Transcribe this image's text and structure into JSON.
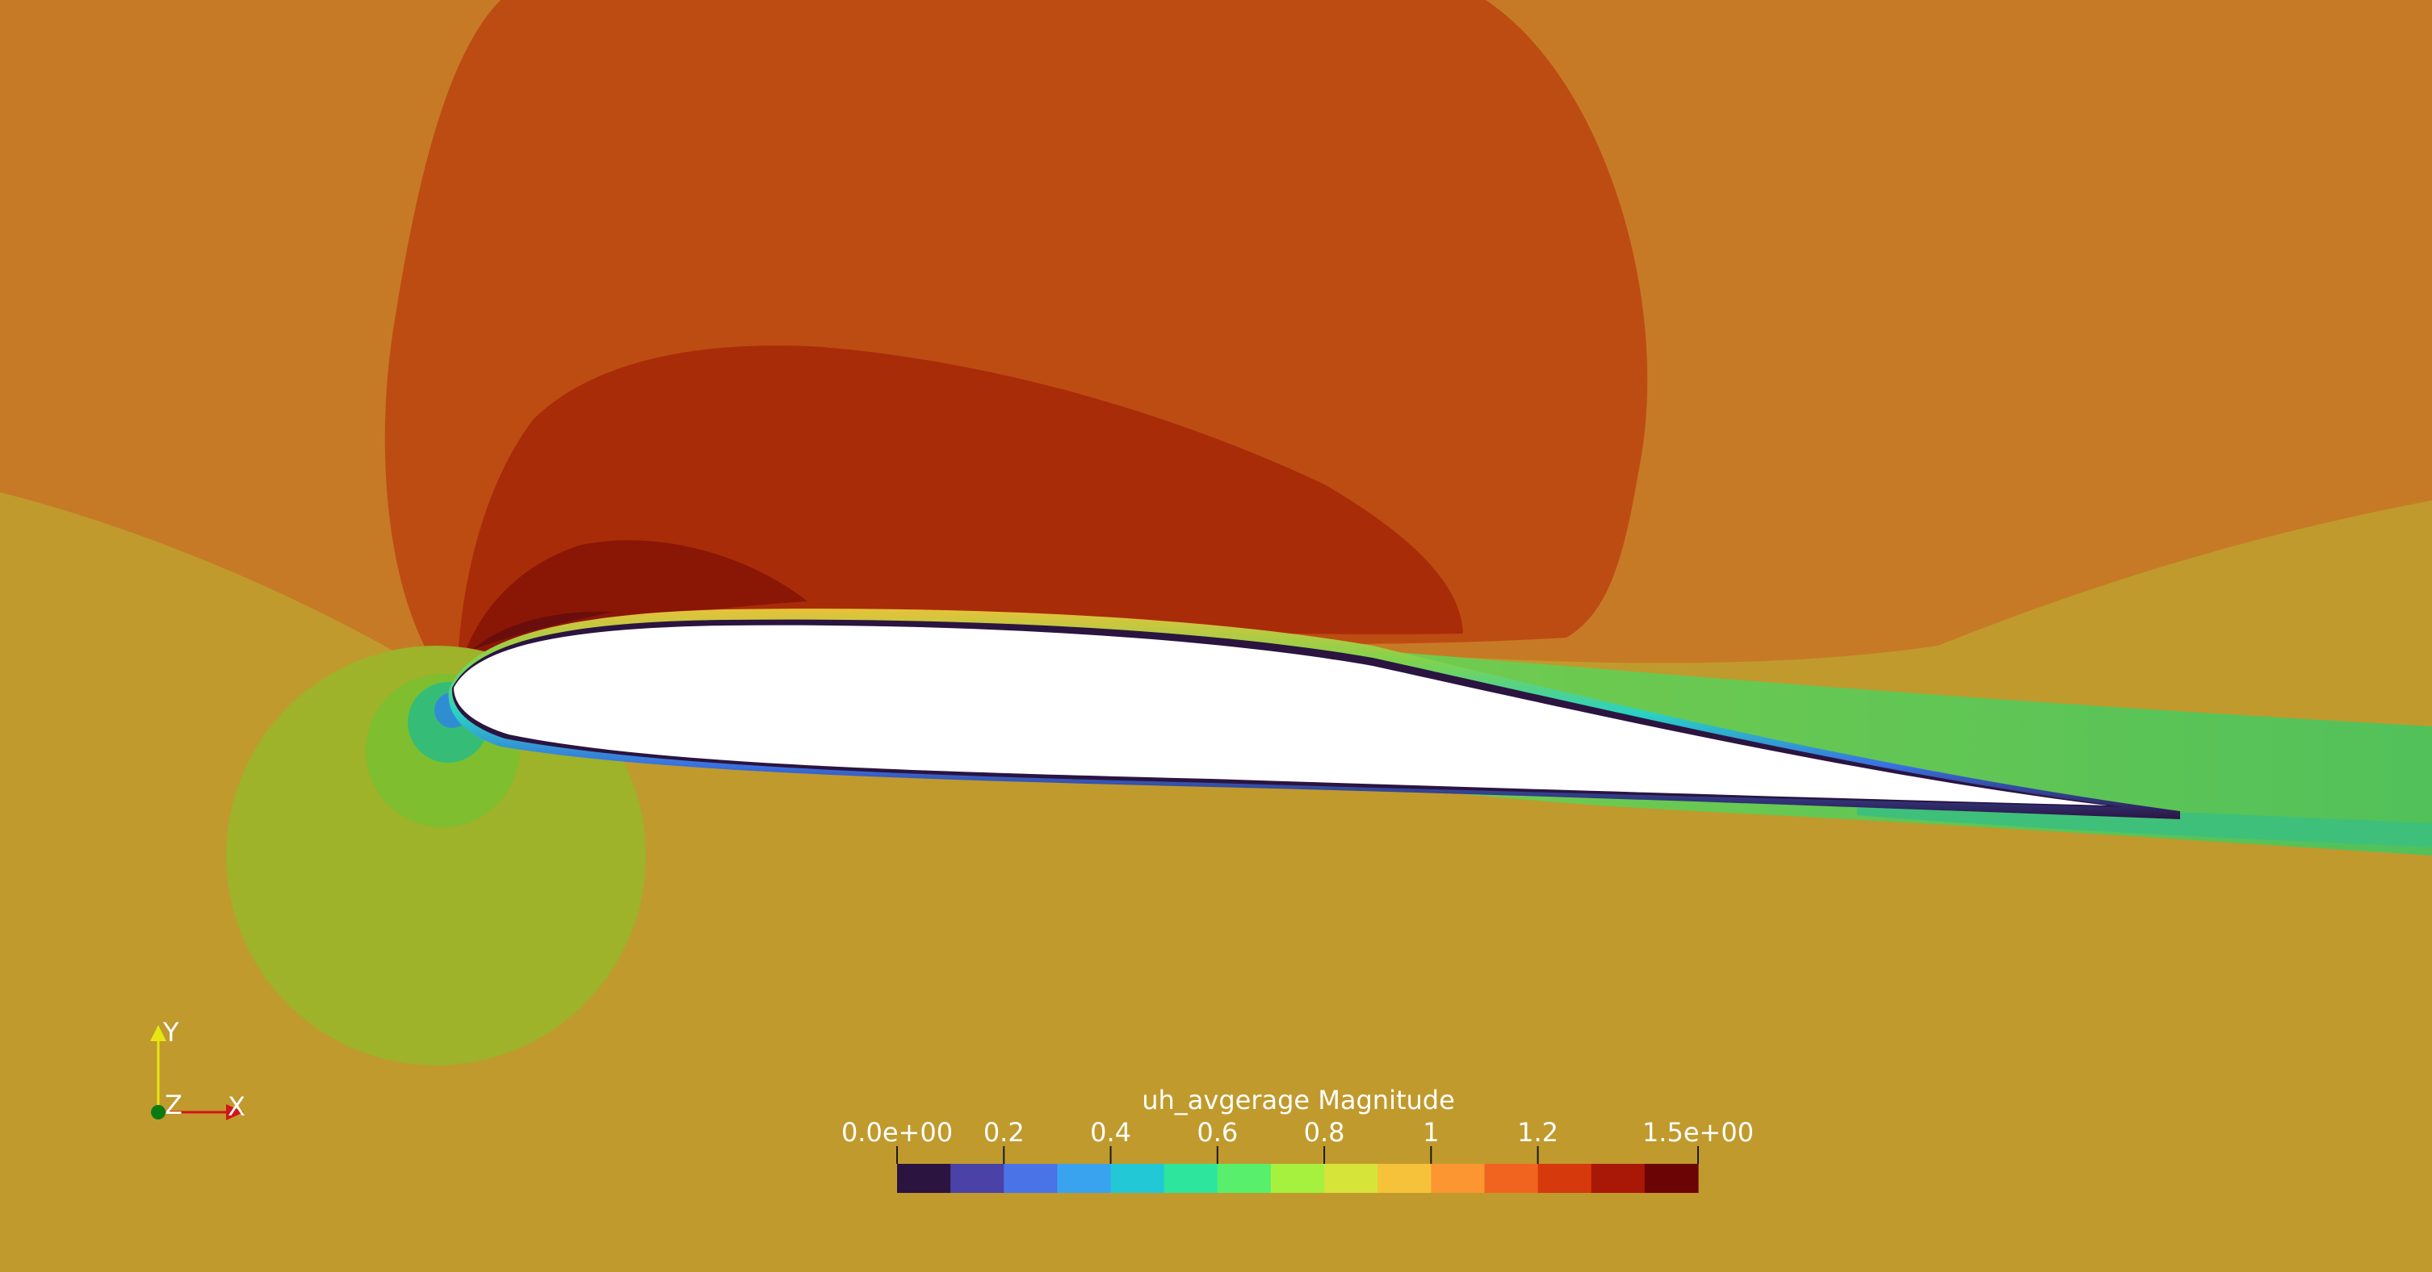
{
  "render": {
    "field_name": "uh_avgerage Magnitude",
    "field_colors": {
      "background_lower": "#c09a2d",
      "background_upper": "#c77a25",
      "upper_bubble": "#bd4c13",
      "upper_inner": "#a92c09",
      "upper_core": "#8a1605",
      "upper_peak": "#6a0d0d",
      "lower_stagnation_disk": "#9eb22a",
      "lower_inner_disk": "#7fbe2e",
      "lower_core": "#35bd78",
      "stagnation_point": "#2f8ed1",
      "airfoil_surface": "#ffffff",
      "boundary_layer_dark": "#2b1440",
      "wake_green": "#55c24e",
      "wake_light": "#8ccc3a"
    }
  },
  "colorbar": {
    "title": "uh_avgerage Magnitude",
    "range": [
      0,
      1.5
    ],
    "tick_labels": [
      "0.0e+00",
      "0.2",
      "0.4",
      "0.6",
      "0.8",
      "1",
      "1.2",
      "1.5e+00"
    ],
    "tick_values": [
      0,
      0.2,
      0.4,
      0.6,
      0.8,
      1.0,
      1.2,
      1.5
    ],
    "colors": [
      "#2b1440",
      "#4a42a6",
      "#4a73e8",
      "#3aa3f0",
      "#22c8d6",
      "#2de59c",
      "#58ef6c",
      "#a6f03e",
      "#d6e43a",
      "#f5c23a",
      "#fb9630",
      "#f1641f",
      "#d63a0c",
      "#a91706",
      "#6b0404"
    ]
  },
  "axes": {
    "y_label": "Y",
    "z_label": "Z",
    "x_label": "X",
    "x_color": "#d11616",
    "y_color": "#e6e613",
    "z_color": "#0b7a12"
  }
}
